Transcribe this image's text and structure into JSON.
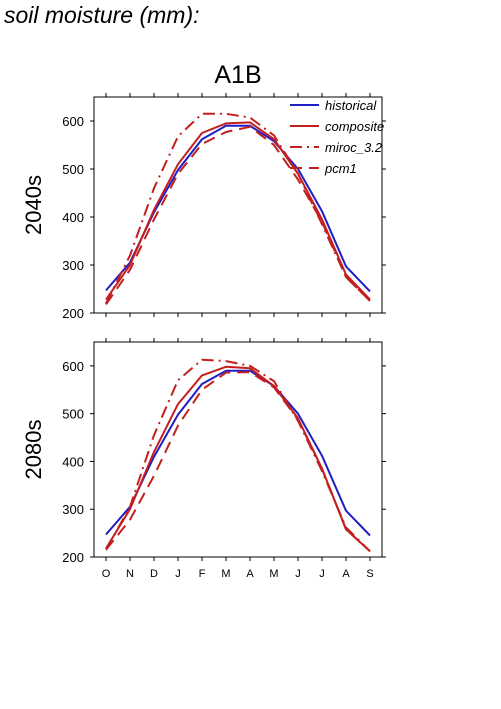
{
  "page_title": "soil moisture (mm):",
  "colors": {
    "historical": "#1f1fc4",
    "projection": "#c41f1f",
    "axis": "#000000"
  },
  "chart_data": [
    {
      "type": "line",
      "title": "A1B",
      "ylabel": "2040s",
      "xlabel": "",
      "categories": [
        "O",
        "N",
        "D",
        "J",
        "F",
        "M",
        "A",
        "M",
        "J",
        "J",
        "A",
        "S"
      ],
      "ylim": [
        200,
        650
      ],
      "yticks": [
        200,
        300,
        400,
        500,
        600
      ],
      "grid": false,
      "legend_position": "top-right",
      "series": [
        {
          "name": "historical",
          "style": "solid",
          "color": "#1f1fc4",
          "values": [
            247,
            305,
            410,
            498,
            562,
            590,
            590,
            558,
            500,
            412,
            297,
            245
          ]
        },
        {
          "name": "composite",
          "style": "solid",
          "color": "#c41f1f",
          "values": [
            228,
            300,
            415,
            510,
            575,
            595,
            597,
            562,
            490,
            395,
            280,
            228
          ]
        },
        {
          "name": "miroc_3.2",
          "style": "dashdot",
          "color": "#c41f1f",
          "values": [
            220,
            320,
            460,
            568,
            615,
            615,
            607,
            570,
            490,
            385,
            275,
            225
          ]
        },
        {
          "name": "pcm1",
          "style": "dashed",
          "color": "#c41f1f",
          "values": [
            218,
            290,
            395,
            490,
            552,
            577,
            588,
            550,
            478,
            390,
            275,
            225
          ]
        }
      ]
    },
    {
      "type": "line",
      "title": "",
      "ylabel": "2080s",
      "xlabel": "",
      "categories": [
        "O",
        "N",
        "D",
        "J",
        "F",
        "M",
        "A",
        "M",
        "J",
        "J",
        "A",
        "S"
      ],
      "ylim": [
        200,
        650
      ],
      "yticks": [
        200,
        300,
        400,
        500,
        600
      ],
      "grid": false,
      "series": [
        {
          "name": "historical",
          "style": "solid",
          "color": "#1f1fc4",
          "values": [
            247,
            305,
            410,
            498,
            562,
            590,
            590,
            558,
            500,
            412,
            297,
            245
          ]
        },
        {
          "name": "composite",
          "style": "solid",
          "color": "#c41f1f",
          "values": [
            218,
            300,
            420,
            520,
            580,
            598,
            595,
            558,
            490,
            385,
            258,
            212
          ]
        },
        {
          "name": "miroc_3.2",
          "style": "dashdot",
          "color": "#c41f1f",
          "values": [
            215,
            305,
            455,
            570,
            613,
            610,
            600,
            568,
            485,
            380,
            262,
            212
          ]
        },
        {
          "name": "pcm1",
          "style": "dashed",
          "color": "#c41f1f",
          "values": [
            215,
            278,
            370,
            475,
            550,
            586,
            587,
            555,
            488,
            385,
            258,
            212
          ]
        }
      ]
    }
  ]
}
